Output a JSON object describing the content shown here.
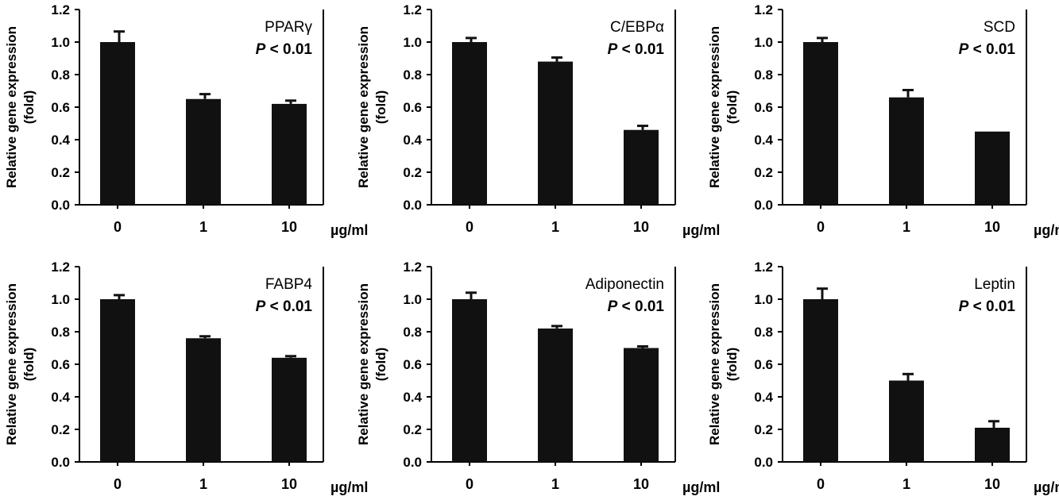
{
  "figure": {
    "y_axis_label_line1": "Relative gene expression",
    "y_axis_label_line2": "(fold)",
    "x_unit": "µg/ml",
    "p_prefix": "P",
    "p_suffix": " < 0.01"
  },
  "chart_data": [
    {
      "type": "bar",
      "title": "PPARγ",
      "annotation": "P < 0.01",
      "categories": [
        "0",
        "1",
        "10"
      ],
      "values": [
        1.0,
        0.65,
        0.62
      ],
      "errors": [
        0.065,
        0.03,
        0.02
      ],
      "ylabel": "Relative gene expression (fold)",
      "xlabel": "µg/ml",
      "ylim": [
        0,
        1.2
      ],
      "yticks": [
        "0.0",
        "0.2",
        "0.4",
        "0.6",
        "0.8",
        "1.0",
        "1.2"
      ]
    },
    {
      "type": "bar",
      "title": "C/EBPα",
      "annotation": "P < 0.01",
      "categories": [
        "0",
        "1",
        "10"
      ],
      "values": [
        1.0,
        0.88,
        0.46
      ],
      "errors": [
        0.025,
        0.025,
        0.025
      ],
      "ylabel": "Relative gene expression (fold)",
      "xlabel": "µg/ml",
      "ylim": [
        0,
        1.2
      ],
      "yticks": [
        "0.0",
        "0.2",
        "0.4",
        "0.6",
        "0.8",
        "1.0",
        "1.2"
      ]
    },
    {
      "type": "bar",
      "title": "SCD",
      "annotation": "P < 0.01",
      "categories": [
        "0",
        "1",
        "10"
      ],
      "values": [
        1.0,
        0.66,
        0.45
      ],
      "errors": [
        0.025,
        0.045,
        0.0
      ],
      "ylabel": "Relative gene expression (fold)",
      "xlabel": "µg/ml",
      "ylim": [
        0,
        1.2
      ],
      "yticks": [
        "0.0",
        "0.2",
        "0.4",
        "0.6",
        "0.8",
        "1.0",
        "1.2"
      ]
    },
    {
      "type": "bar",
      "title": "FABP4",
      "annotation": "P < 0.01",
      "categories": [
        "0",
        "1",
        "10"
      ],
      "values": [
        1.0,
        0.76,
        0.64
      ],
      "errors": [
        0.025,
        0.012,
        0.01
      ],
      "ylabel": "Relative gene expression (fold)",
      "xlabel": "µg/ml",
      "ylim": [
        0,
        1.2
      ],
      "yticks": [
        "0.0",
        "0.2",
        "0.4",
        "0.6",
        "0.8",
        "1.0",
        "1.2"
      ]
    },
    {
      "type": "bar",
      "title": "Adiponectin",
      "annotation": "P < 0.01",
      "categories": [
        "0",
        "1",
        "10"
      ],
      "values": [
        1.0,
        0.82,
        0.7
      ],
      "errors": [
        0.04,
        0.015,
        0.01
      ],
      "ylabel": "Relative gene expression (fold)",
      "xlabel": "µg/ml",
      "ylim": [
        0,
        1.2
      ],
      "yticks": [
        "0.0",
        "0.2",
        "0.4",
        "0.6",
        "0.8",
        "1.0",
        "1.2"
      ]
    },
    {
      "type": "bar",
      "title": "Leptin",
      "annotation": "P < 0.01",
      "categories": [
        "0",
        "1",
        "10"
      ],
      "values": [
        1.0,
        0.5,
        0.21
      ],
      "errors": [
        0.065,
        0.04,
        0.04
      ],
      "ylabel": "Relative gene expression (fold)",
      "xlabel": "µg/ml",
      "ylim": [
        0,
        1.2
      ],
      "yticks": [
        "0.0",
        "0.2",
        "0.4",
        "0.6",
        "0.8",
        "1.0",
        "1.2"
      ]
    }
  ]
}
